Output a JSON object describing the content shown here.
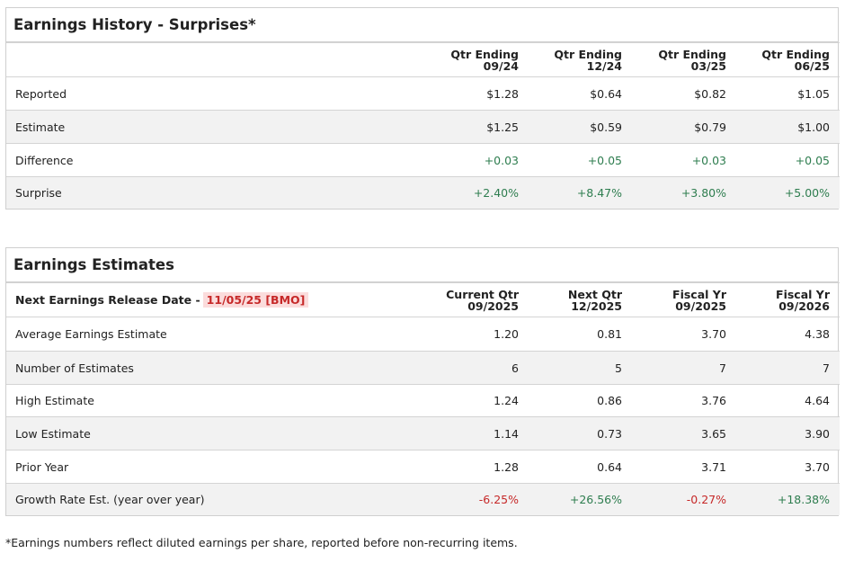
{
  "history": {
    "title": "Earnings History - Surprises*",
    "headers": [
      {
        "line1": "Qtr Ending",
        "line2": "09/24"
      },
      {
        "line1": "Qtr Ending",
        "line2": "12/24"
      },
      {
        "line1": "Qtr Ending",
        "line2": "03/25"
      },
      {
        "line1": "Qtr Ending",
        "line2": "06/25"
      }
    ],
    "rows": [
      {
        "label": "Reported",
        "values": [
          "$1.28",
          "$0.64",
          "$0.82",
          "$1.05"
        ]
      },
      {
        "label": "Estimate",
        "values": [
          "$1.25",
          "$0.59",
          "$0.79",
          "$1.00"
        ]
      },
      {
        "label": "Difference",
        "values": [
          "+0.03",
          "+0.05",
          "+0.03",
          "+0.05"
        ]
      },
      {
        "label": "Surprise",
        "values": [
          "+2.40%",
          "+8.47%",
          "+3.80%",
          "+5.00%"
        ]
      }
    ]
  },
  "estimates": {
    "title": "Earnings Estimates",
    "release_label": "Next Earnings Release Date -",
    "release_date": "11/05/25 [BMO]",
    "headers": [
      {
        "line1": "Current Qtr",
        "line2": "09/2025"
      },
      {
        "line1": "Next Qtr",
        "line2": "12/2025"
      },
      {
        "line1": "Fiscal Yr",
        "line2": "09/2025"
      },
      {
        "line1": "Fiscal Yr",
        "line2": "09/2026"
      }
    ],
    "rows": [
      {
        "label": "Average Earnings Estimate",
        "values": [
          "1.20",
          "0.81",
          "3.70",
          "4.38"
        ]
      },
      {
        "label": "Number of Estimates",
        "values": [
          "6",
          "5",
          "7",
          "7"
        ]
      },
      {
        "label": "High Estimate",
        "values": [
          "1.24",
          "0.86",
          "3.76",
          "4.64"
        ]
      },
      {
        "label": "Low Estimate",
        "values": [
          "1.14",
          "0.73",
          "3.65",
          "3.90"
        ]
      },
      {
        "label": "Prior Year",
        "values": [
          "1.28",
          "0.64",
          "3.71",
          "3.70"
        ]
      },
      {
        "label": "Growth Rate Est. (year over year)",
        "values": [
          "-6.25%",
          "+26.56%",
          "-0.27%",
          "+18.38%"
        ]
      }
    ]
  },
  "footnote": "*Earnings numbers reflect diluted earnings per share, reported before non-recurring items."
}
